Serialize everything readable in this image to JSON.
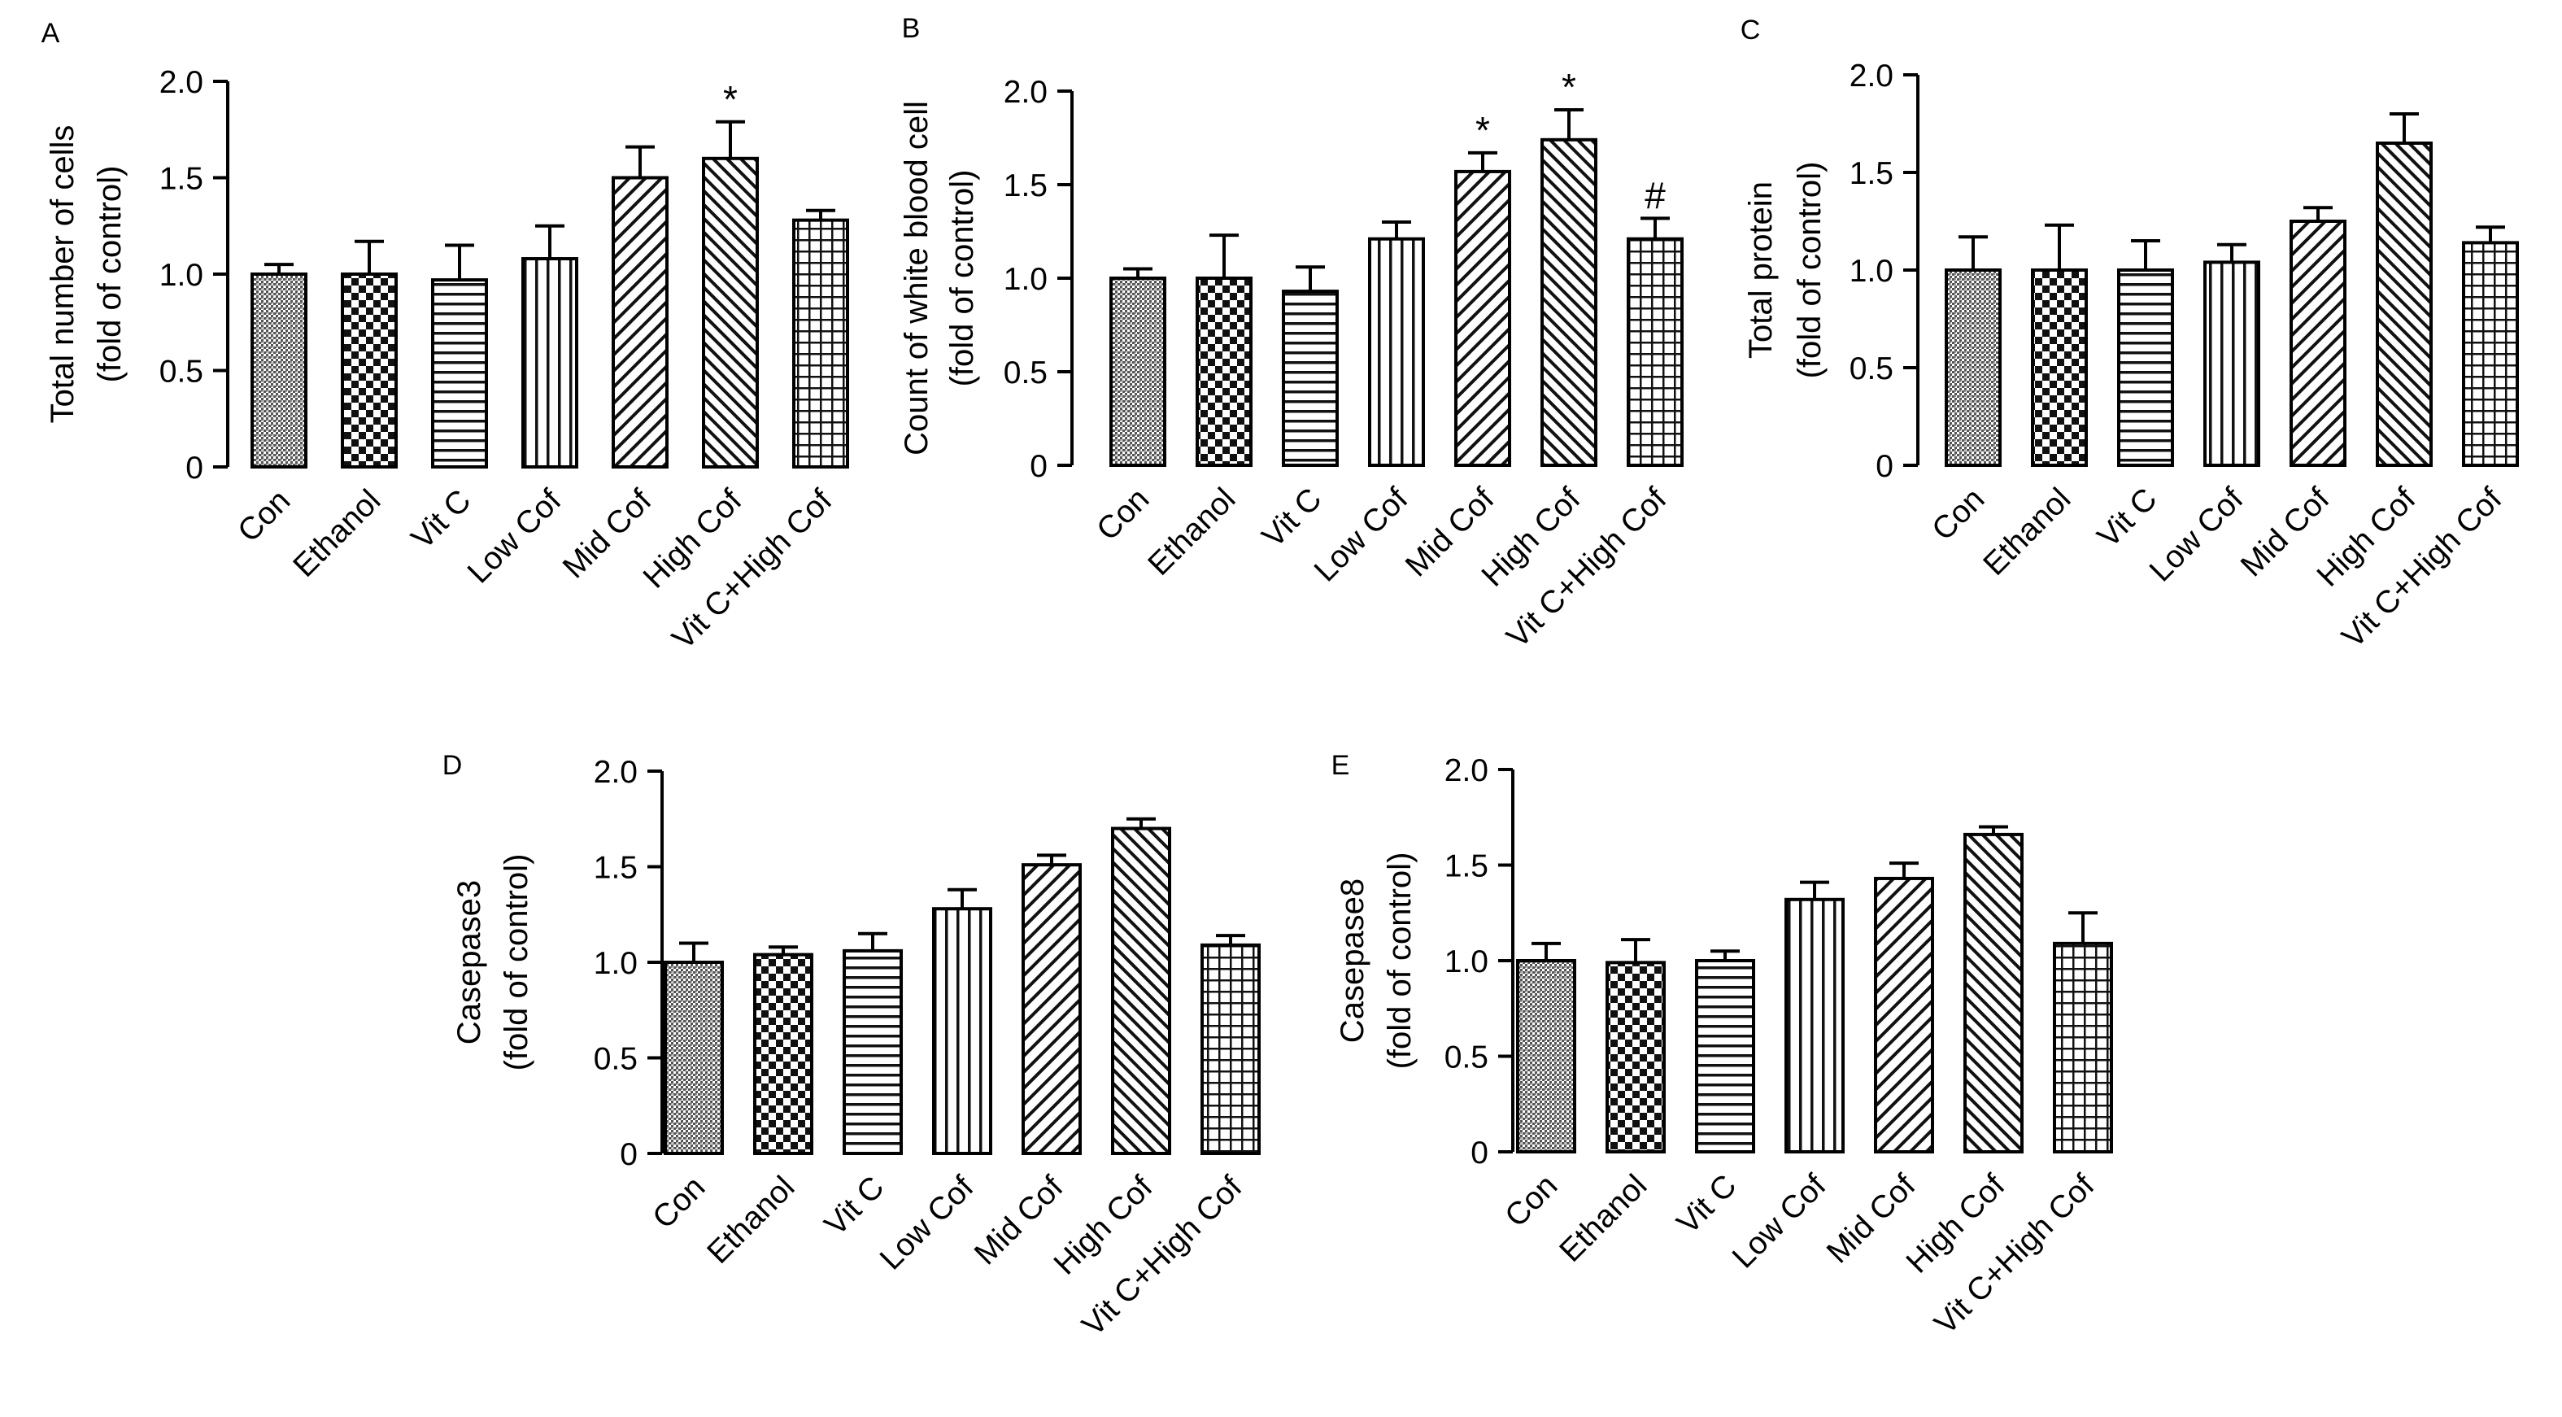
{
  "chart_data": [
    {
      "type": "bar",
      "panel": "A",
      "ylabel": [
        "Total number of cells",
        "(fold of control)"
      ],
      "ylim": [
        0,
        2.0
      ],
      "yticks": [
        "0",
        "0.5",
        "1.0",
        "1.5",
        "2.0"
      ],
      "categories": [
        "Con",
        "Ethanol",
        "Vit C",
        "Low Cof",
        "Mid Cof",
        "High Cof",
        "Vit C+High Cof"
      ],
      "values": [
        1.0,
        1.0,
        0.97,
        1.08,
        1.5,
        1.6,
        1.28
      ],
      "errors": [
        0.05,
        0.17,
        0.18,
        0.17,
        0.16,
        0.19,
        0.05
      ],
      "annotations": [
        "",
        "",
        "",
        "",
        "",
        "*",
        ""
      ]
    },
    {
      "type": "bar",
      "panel": "B",
      "ylabel": [
        "Count of white blood cell",
        "(fold of control)"
      ],
      "ylim": [
        0,
        2.0
      ],
      "yticks": [
        "0",
        "0.5",
        "1.0",
        "1.5",
        "2.0"
      ],
      "categories": [
        "Con",
        "Ethanol",
        "Vit C",
        "Low Cof",
        "Mid Cof",
        "High Cof",
        "Vit C+High Cof"
      ],
      "values": [
        1.0,
        1.0,
        0.93,
        1.21,
        1.57,
        1.74,
        1.21
      ],
      "errors": [
        0.05,
        0.23,
        0.13,
        0.09,
        0.1,
        0.16,
        0.11
      ],
      "annotations": [
        "",
        "",
        "",
        "",
        "*",
        "*",
        "#"
      ]
    },
    {
      "type": "bar",
      "panel": "C",
      "ylabel": [
        "Total protein",
        "(fold of control)"
      ],
      "ylim": [
        0,
        2.0
      ],
      "yticks": [
        "0",
        "0.5",
        "1.0",
        "1.5",
        "2.0"
      ],
      "categories": [
        "Con",
        "Ethanol",
        "Vit C",
        "Low Cof",
        "Mid Cof",
        "High Cof",
        "Vit C+High Cof"
      ],
      "values": [
        1.0,
        1.0,
        1.0,
        1.04,
        1.25,
        1.65,
        1.14
      ],
      "errors": [
        0.17,
        0.23,
        0.15,
        0.09,
        0.07,
        0.15,
        0.08
      ],
      "annotations": [
        "",
        "",
        "",
        "",
        "",
        "",
        ""
      ]
    },
    {
      "type": "bar",
      "panel": "D",
      "ylabel": [
        "Casepase3",
        "(fold of control)"
      ],
      "ylim": [
        0,
        2.0
      ],
      "yticks": [
        "0",
        "0.5",
        "1.0",
        "1.5",
        "2.0"
      ],
      "categories": [
        "Con",
        "Ethanol",
        "Vit C",
        "Low Cof",
        "Mid Cof",
        "High Cof",
        "Vit C+High Cof"
      ],
      "values": [
        1.0,
        1.04,
        1.06,
        1.28,
        1.51,
        1.7,
        1.09
      ],
      "errors": [
        0.1,
        0.04,
        0.09,
        0.1,
        0.05,
        0.05,
        0.05
      ],
      "annotations": [
        "",
        "",
        "",
        "",
        "",
        "",
        ""
      ]
    },
    {
      "type": "bar",
      "panel": "E",
      "ylabel": [
        "Casepase8",
        "(fold of control)"
      ],
      "ylim": [
        0,
        2.0
      ],
      "yticks": [
        "0",
        "0.5",
        "1.0",
        "1.5",
        "2.0"
      ],
      "categories": [
        "Con",
        "Ethanol",
        "Vit C",
        "Low Cof",
        "Mid Cof",
        "High Cof",
        "Vit C+High Cof"
      ],
      "values": [
        1.0,
        0.99,
        1.0,
        1.32,
        1.43,
        1.66,
        1.09
      ],
      "errors": [
        0.09,
        0.12,
        0.05,
        0.09,
        0.08,
        0.04,
        0.16
      ],
      "annotations": [
        "",
        "",
        "",
        "",
        "",
        "",
        ""
      ]
    }
  ]
}
